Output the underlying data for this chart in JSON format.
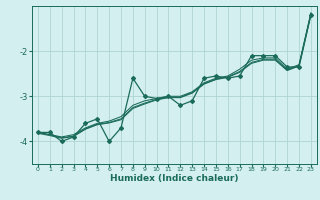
{
  "xlabel": "Humidex (Indice chaleur)",
  "bg_color": "#d4efef",
  "grid_color": "#aed4d4",
  "line_color": "#1a6b5a",
  "xlim": [
    -0.5,
    23.5
  ],
  "ylim": [
    -4.5,
    -1.0
  ],
  "yticks": [
    -4,
    -3,
    -2
  ],
  "xticks": [
    0,
    1,
    2,
    3,
    4,
    5,
    6,
    7,
    8,
    9,
    10,
    11,
    12,
    13,
    14,
    15,
    16,
    17,
    18,
    19,
    20,
    21,
    22,
    23
  ],
  "series": [
    {
      "x": [
        0,
        1,
        2,
        3,
        4,
        5,
        6,
        7,
        8,
        9,
        10,
        11,
        12,
        13,
        14,
        15,
        16,
        17,
        18,
        19,
        20,
        21,
        22,
        23
      ],
      "y": [
        -3.8,
        -3.8,
        -4.0,
        -3.9,
        -3.6,
        -3.5,
        -4.0,
        -3.7,
        -2.6,
        -3.0,
        -3.05,
        -3.0,
        -3.2,
        -3.1,
        -2.6,
        -2.55,
        -2.6,
        -2.55,
        -2.1,
        -2.1,
        -2.1,
        -2.35,
        -2.35,
        -1.2
      ],
      "has_markers": true
    },
    {
      "x": [
        0,
        1,
        2,
        3,
        4,
        5,
        6,
        7,
        8,
        9,
        10,
        11,
        12,
        13,
        14,
        15,
        16,
        17,
        18,
        19,
        20,
        21,
        22,
        23
      ],
      "y": [
        -3.8,
        -3.85,
        -3.9,
        -3.85,
        -3.7,
        -3.6,
        -3.55,
        -3.45,
        -3.2,
        -3.1,
        -3.05,
        -3.0,
        -3.0,
        -2.9,
        -2.7,
        -2.6,
        -2.55,
        -2.4,
        -2.2,
        -2.15,
        -2.15,
        -2.4,
        -2.3,
        -1.15
      ],
      "has_markers": false
    },
    {
      "x": [
        0,
        1,
        2,
        3,
        4,
        5,
        6,
        7,
        8,
        9,
        10,
        11,
        12,
        13,
        14,
        15,
        16,
        17,
        18,
        19,
        20,
        21,
        22,
        23
      ],
      "y": [
        -3.8,
        -3.85,
        -3.92,
        -3.88,
        -3.72,
        -3.62,
        -3.58,
        -3.5,
        -3.25,
        -3.15,
        -3.07,
        -3.02,
        -3.02,
        -2.92,
        -2.72,
        -2.62,
        -2.57,
        -2.45,
        -2.25,
        -2.18,
        -2.18,
        -2.42,
        -2.32,
        -1.18
      ],
      "has_markers": false
    },
    {
      "x": [
        0,
        1,
        2,
        3,
        4,
        5,
        6,
        7,
        8,
        9,
        10,
        11,
        12,
        13,
        14,
        15,
        16,
        17,
        18,
        19,
        20,
        21,
        22,
        23
      ],
      "y": [
        -3.82,
        -3.87,
        -3.93,
        -3.89,
        -3.73,
        -3.63,
        -3.59,
        -3.52,
        -3.27,
        -3.17,
        -3.08,
        -3.03,
        -3.03,
        -2.93,
        -2.73,
        -2.63,
        -2.58,
        -2.47,
        -2.27,
        -2.2,
        -2.2,
        -2.43,
        -2.33,
        -1.19
      ],
      "has_markers": false
    }
  ]
}
